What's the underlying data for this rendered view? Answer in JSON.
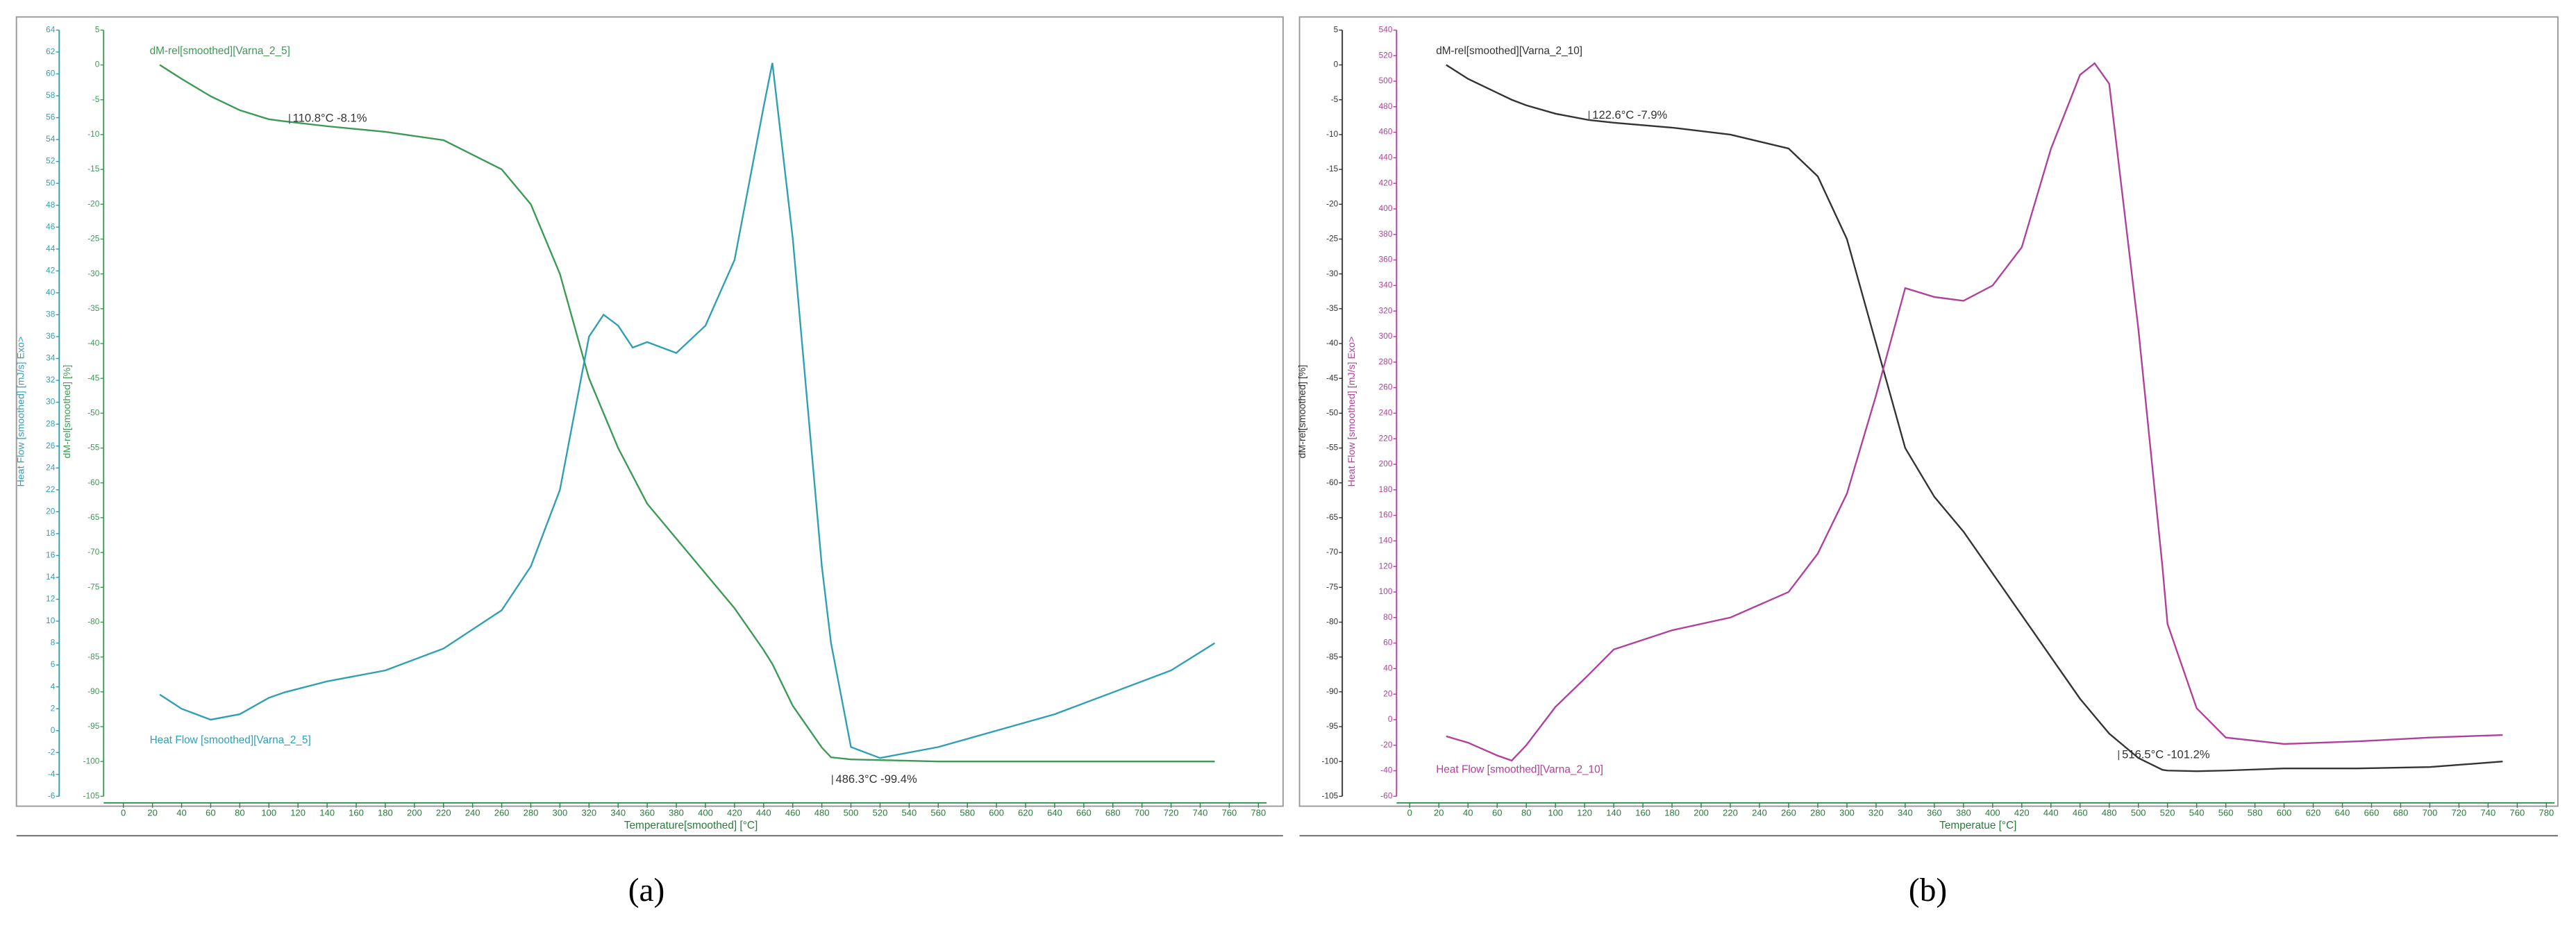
{
  "chart_data": [
    {
      "type": "line",
      "caption": "(a)",
      "xlabel": "Temperature[smoothed]  [°C]",
      "ylabel": "Heat Flow [smoothed]  [mJ/s]  Exo>",
      "y2label": "dM-rel[smoothed]  [%]",
      "xlim": [
        0,
        780
      ],
      "xticks": [
        0,
        20,
        40,
        60,
        80,
        100,
        120,
        140,
        160,
        180,
        200,
        220,
        240,
        260,
        280,
        300,
        320,
        340,
        360,
        380,
        400,
        420,
        440,
        460,
        480,
        500,
        520,
        540,
        560,
        580,
        600,
        620,
        640,
        660,
        680,
        700,
        720,
        740,
        760,
        780
      ],
      "ylim": [
        -6,
        64
      ],
      "yticks": [
        64,
        62,
        60,
        58,
        56,
        54,
        52,
        50,
        48,
        46,
        44,
        42,
        40,
        38,
        36,
        34,
        32,
        30,
        28,
        26,
        24,
        22,
        20,
        18,
        16,
        14,
        12,
        10,
        8,
        6,
        4,
        2,
        0,
        -2,
        -4,
        -6
      ],
      "y2lim": [
        -105,
        5
      ],
      "y2ticks": [
        5,
        0,
        -5,
        -10,
        -15,
        -20,
        -25,
        -30,
        -35,
        -40,
        -45,
        -50,
        -55,
        -60,
        -65,
        -70,
        -75,
        -80,
        -85,
        -90,
        -95,
        -100,
        -105
      ],
      "x": [
        25,
        40,
        60,
        80,
        100,
        110.8,
        140,
        180,
        220,
        260,
        280,
        300,
        320,
        330,
        340,
        350,
        360,
        380,
        400,
        420,
        440,
        446,
        460,
        480,
        486.3,
        500,
        520,
        560,
        600,
        640,
        680,
        720,
        750
      ],
      "series": [
        {
          "name": "dM-rel[smoothed][Varna_2_5]",
          "color": "#3c9a55",
          "axis": "y2",
          "values": [
            0,
            -2,
            -4.5,
            -6.5,
            -7.8,
            -8.1,
            -8.8,
            -9.6,
            -10.8,
            -15,
            -20,
            -30,
            -45,
            -50,
            -55,
            -59,
            -63,
            -68,
            -73,
            -78,
            -84,
            -86,
            -92,
            -98,
            -99.4,
            -99.7,
            -99.8,
            -100,
            -100,
            -100,
            -100,
            -100,
            -100
          ]
        },
        {
          "name": "Heat Flow [smoothed][Varna_2_5]",
          "color": "#2f9fb3",
          "values": [
            3.3,
            2,
            1,
            1.5,
            3,
            3.5,
            4.5,
            5.5,
            7.5,
            11,
            15,
            22,
            36,
            38,
            37,
            35,
            35.5,
            34.5,
            37,
            43,
            57,
            61,
            45,
            15,
            8,
            -1.5,
            -2.5,
            -1.5,
            0,
            1.5,
            3.5,
            5.5,
            8
          ]
        }
      ],
      "annotations": [
        "110.8°C  -8.1%",
        "486.3°C  -99.4%"
      ]
    },
    {
      "type": "line",
      "caption": "(b)",
      "xlabel": "Temperatue  [°C]",
      "ylabel": "dM-rel[smoothed]  [%]",
      "y2label": "Heat Flow [smoothed]  [mJ/s]  Exo>",
      "xlim": [
        0,
        780
      ],
      "xticks": [
        0,
        20,
        40,
        60,
        80,
        100,
        120,
        140,
        160,
        180,
        200,
        220,
        240,
        260,
        280,
        300,
        320,
        340,
        360,
        380,
        400,
        420,
        440,
        460,
        480,
        500,
        520,
        540,
        560,
        580,
        600,
        620,
        640,
        660,
        680,
        700,
        720,
        740,
        760,
        780
      ],
      "ylim": [
        -105,
        5
      ],
      "yticks": [
        5,
        0,
        -5,
        -10,
        -15,
        -20,
        -25,
        -30,
        -35,
        -40,
        -45,
        -50,
        -55,
        -60,
        -65,
        -70,
        -75,
        -80,
        -85,
        -90,
        -95,
        -100,
        -105
      ],
      "y2lim": [
        -60,
        540
      ],
      "y2ticks": [
        540,
        520,
        500,
        480,
        460,
        440,
        420,
        400,
        380,
        360,
        340,
        320,
        300,
        280,
        260,
        240,
        220,
        200,
        180,
        160,
        140,
        120,
        100,
        80,
        60,
        40,
        20,
        0,
        -20,
        -40,
        -60
      ],
      "x": [
        25,
        40,
        60,
        70,
        80,
        100,
        122.6,
        140,
        180,
        220,
        260,
        280,
        300,
        320,
        340,
        360,
        380,
        400,
        420,
        440,
        460,
        470,
        480,
        500,
        516.5,
        520,
        540,
        560,
        600,
        650,
        700,
        750
      ],
      "series": [
        {
          "name": "dM-rel[smoothed][Varna_2_10]",
          "color": "#333333",
          "values": [
            0,
            -2,
            -4,
            -5,
            -5.8,
            -7,
            -7.9,
            -8.3,
            -9,
            -10,
            -12,
            -16,
            -25,
            -40,
            -55,
            -62,
            -67,
            -73,
            -79,
            -85,
            -91,
            -93.5,
            -96,
            -99.5,
            -101.2,
            -101.3,
            -101.4,
            -101.3,
            -101,
            -101,
            -100.8,
            -100
          ]
        },
        {
          "name": "Heat Flow [smoothed][Varna_2_10]",
          "color": "#b0409c",
          "axis": "y2",
          "values": [
            -13,
            -18,
            -28,
            -32,
            -20,
            10,
            35,
            55,
            70,
            80,
            100,
            130,
            177,
            254,
            338,
            331,
            328,
            340,
            370,
            447,
            505,
            514,
            498,
            306,
            120,
            75,
            9,
            -14,
            -19,
            -17,
            -14,
            -12
          ]
        }
      ],
      "annotations": [
        "122.6°C  -7.9%",
        "516.5°C  -101.2%"
      ]
    }
  ]
}
